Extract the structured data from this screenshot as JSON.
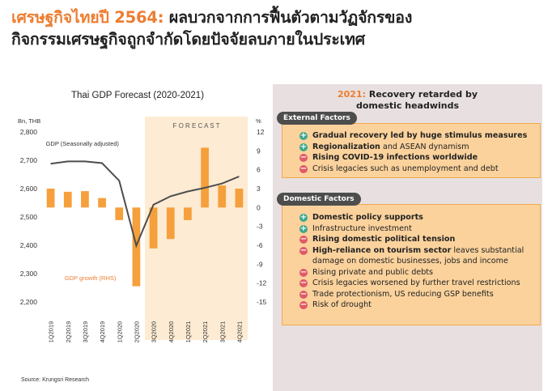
{
  "header": {
    "title_accent": "เศรษฐกิจไทยปี 2564:",
    "title_rest": " ผลบวกจากการฟื้นตัวตามวัฏจักรของ",
    "title_line2": "กิจกรรมเศรษฐกิจถูกจำกัดโดยปัจจัยลบภายในประเทศ"
  },
  "chart_data": {
    "type": "bar+line",
    "title": "Thai GDP Forecast (2020-2021)",
    "left_axis_unit": "Bn, THB",
    "right_axis_unit": "%",
    "forecast_label": "F O R E C A S T",
    "forecast_from": "3Q2020",
    "categories": [
      "1Q2019",
      "2Q2019",
      "3Q2019",
      "4Q2019",
      "1Q2020",
      "2Q2020",
      "3Q2020",
      "4Q2020",
      "1Q2021",
      "2Q2021",
      "3Q2021",
      "4Q2021"
    ],
    "left_ticks": [
      "2,800",
      "2,700",
      "2,600",
      "2,500",
      "2,400",
      "2,300",
      "2,200"
    ],
    "right_ticks": [
      "12",
      "9",
      "6",
      "3",
      "0",
      "-3",
      "-6",
      "-9",
      "-12",
      "-15"
    ],
    "ylim_left": [
      2200,
      2800
    ],
    "ylim_right": [
      -15,
      12
    ],
    "series": [
      {
        "name": "GDP (Seasonally adjusted)",
        "type": "line",
        "axis": "left",
        "values": [
          2688,
          2696,
          2696,
          2690,
          2628,
          2399,
          2543,
          2573,
          2590,
          2603,
          2618,
          2643
        ],
        "color": "#4d4d4d"
      },
      {
        "name": "GDP growth (RHS)",
        "type": "bar",
        "axis": "right",
        "values": [
          3.0,
          2.5,
          2.6,
          1.5,
          -2.0,
          -12.5,
          -6.5,
          -5.0,
          -2.0,
          9.5,
          3.5,
          3.0
        ],
        "color": "#f5a03c"
      }
    ]
  },
  "panel": {
    "title_year": "2021:",
    "title_rest": " Recovery retarded by",
    "title_line2": "domestic headwinds",
    "external": {
      "label": "External Factors",
      "items": [
        {
          "sign": "plus",
          "bold": "Gradual recovery led by huge stimulus measures",
          "rest": ""
        },
        {
          "sign": "plus",
          "bold": "Regionalization",
          "rest": " and ASEAN dynamism"
        },
        {
          "sign": "minus",
          "bold": "Rising COVID-19 infections worldwide",
          "rest": ""
        },
        {
          "sign": "minus",
          "bold": "",
          "rest": "Crisis legacies such as unemployment and debt"
        }
      ]
    },
    "domestic": {
      "label": "Domestic Factors",
      "items": [
        {
          "sign": "plus",
          "bold": "Domestic policy supports",
          "rest": ""
        },
        {
          "sign": "plus",
          "bold": "",
          "rest": "Infrastructure investment"
        },
        {
          "sign": "minus",
          "bold": "Rising domestic political tension",
          "rest": ""
        },
        {
          "sign": "minus",
          "bold": "High-reliance on tourism sector",
          "rest": " leaves substantial damage on domestic businesses, jobs and income"
        },
        {
          "sign": "minus",
          "bold": "",
          "rest": "Rising private and public debts"
        },
        {
          "sign": "minus",
          "bold": "",
          "rest": "Crisis legacies worsened by further travel restrictions"
        },
        {
          "sign": "minus",
          "bold": "",
          "rest": "Trade protectionism, US reducing GSP benefits"
        },
        {
          "sign": "minus",
          "bold": "",
          "rest": "Risk of drought"
        }
      ]
    }
  },
  "footer": {
    "source": "Source: Krungsri Research"
  },
  "colors": {
    "accent": "#ed7d31",
    "bar": "#f5a03c",
    "forecast_bg": "#fdebd3",
    "line": "#4d4d4d",
    "panel_bg": "#e8e0e0",
    "box_bg": "#fbd29c",
    "plus": "#3aa78c",
    "minus": "#e05a67"
  }
}
